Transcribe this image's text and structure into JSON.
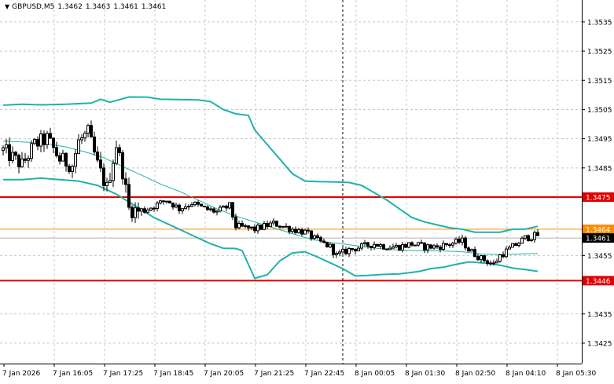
{
  "header": {
    "symbol": "GBPUSD,M5",
    "open": "1.3462",
    "high": "1.3463",
    "low": "1.3461",
    "close": "1.3461"
  },
  "colors": {
    "background": "#ffffff",
    "grid": "#c8c8c8",
    "candle": "#000000",
    "bollinger": "#20b2aa",
    "level_line": "#e00000",
    "ask_line": "#ff8c00",
    "bid_line": "#b0b0b0",
    "cursor_line": "#000000"
  },
  "chart_data": {
    "type": "candlestick",
    "symbol": "GBPUSD",
    "timeframe": "M5",
    "title": "GBPUSD,M5",
    "ylim": [
      1.3418,
      1.35425
    ],
    "grid": true,
    "y_ticks": [
      "1.3535",
      "1.3525",
      "1.3515",
      "1.3505",
      "1.3495",
      "1.3485",
      "1.3475",
      "1.3464",
      "1.3461",
      "1.3455",
      "1.3446",
      "1.3435",
      "1.3425"
    ],
    "x_ticks": [
      "7 Jan 2026",
      "7 Jan 16:05",
      "7 Jan 17:25",
      "7 Jan 18:45",
      "7 Jan 20:05",
      "7 Jan 21:25",
      "7 Jan 22:45",
      "8 Jan 00:05",
      "8 Jan 01:30",
      "8 Jan 02:50",
      "8 Jan 04:10",
      "8 Jan 05:30"
    ],
    "horizontal_levels": [
      {
        "value": 1.3475,
        "label": "1.3475",
        "kind": "level"
      },
      {
        "value": 1.34464,
        "label": "1.3446",
        "kind": "level"
      },
      {
        "value": 1.3464,
        "label": "1.3464",
        "kind": "ask"
      },
      {
        "value": 1.3461,
        "label": "1.3461",
        "kind": "bid"
      }
    ],
    "cursor_line_bar": 108,
    "price_path": [
      [
        0,
        1.3491
      ],
      [
        6,
        1.3486
      ],
      [
        10,
        1.3493
      ],
      [
        14,
        1.3495
      ],
      [
        18,
        1.3488
      ],
      [
        22,
        1.3486
      ],
      [
        24,
        1.3494
      ],
      [
        27,
        1.3497
      ],
      [
        30,
        1.3486
      ],
      [
        33,
        1.3478
      ],
      [
        36,
        1.3493
      ],
      [
        38,
        1.3484
      ],
      [
        40,
        1.3471
      ],
      [
        44,
        1.347
      ],
      [
        48,
        1.3472
      ],
      [
        52,
        1.3474
      ],
      [
        56,
        1.3471
      ],
      [
        60,
        1.3473
      ],
      [
        64,
        1.3471
      ],
      [
        68,
        1.347
      ],
      [
        72,
        1.3472
      ],
      [
        74,
        1.3465
      ],
      [
        80,
        1.3464
      ],
      [
        86,
        1.3466
      ],
      [
        92,
        1.3464
      ],
      [
        96,
        1.3463
      ],
      [
        100,
        1.346
      ],
      [
        104,
        1.3458
      ],
      [
        106,
        1.3455
      ],
      [
        110,
        1.3457
      ],
      [
        114,
        1.3458
      ],
      [
        118,
        1.3459
      ],
      [
        122,
        1.3458
      ],
      [
        126,
        1.3458
      ],
      [
        130,
        1.3459
      ],
      [
        134,
        1.3458
      ],
      [
        138,
        1.3458
      ],
      [
        142,
        1.3459
      ],
      [
        146,
        1.346
      ],
      [
        148,
        1.3457
      ],
      [
        152,
        1.3454
      ],
      [
        156,
        1.3452
      ],
      [
        158,
        1.3455
      ],
      [
        162,
        1.3458
      ],
      [
        166,
        1.3461
      ],
      [
        170,
        1.3462
      ]
    ],
    "series": [
      {
        "values": [
          [
            0,
            1.35065
          ],
          [
            6,
            1.35068
          ],
          [
            12,
            1.35066
          ],
          [
            20,
            1.35068
          ],
          [
            28,
            1.35072
          ],
          [
            31,
            1.35085
          ],
          [
            34,
            1.35075
          ],
          [
            40,
            1.35093
          ],
          [
            46,
            1.35092
          ],
          [
            50,
            1.35085
          ],
          [
            56,
            1.35084
          ],
          [
            62,
            1.35083
          ],
          [
            66,
            1.35077
          ],
          [
            70,
            1.3505
          ],
          [
            74,
            1.35035
          ],
          [
            78,
            1.3503
          ],
          [
            80,
            1.3498
          ],
          [
            84,
            1.3493
          ],
          [
            88,
            1.3488
          ],
          [
            92,
            1.3483
          ],
          [
            96,
            1.34805
          ],
          [
            100,
            1.34803
          ],
          [
            106,
            1.34802
          ],
          [
            110,
            1.348
          ],
          [
            114,
            1.3479
          ],
          [
            118,
            1.34765
          ],
          [
            122,
            1.3474
          ],
          [
            126,
            1.3471
          ],
          [
            130,
            1.3468
          ],
          [
            134,
            1.34665
          ],
          [
            138,
            1.34655
          ],
          [
            142,
            1.34645
          ],
          [
            146,
            1.3464
          ],
          [
            150,
            1.3463
          ],
          [
            154,
            1.3463
          ],
          [
            158,
            1.3463
          ],
          [
            162,
            1.3464
          ],
          [
            166,
            1.3464
          ],
          [
            170,
            1.3465
          ]
        ]
      },
      {
        "values": [
          [
            0,
            1.34942
          ],
          [
            8,
            1.34938
          ],
          [
            14,
            1.34932
          ],
          [
            20,
            1.34922
          ],
          [
            26,
            1.34905
          ],
          [
            32,
            1.34885
          ],
          [
            38,
            1.34855
          ],
          [
            44,
            1.34825
          ],
          [
            50,
            1.34795
          ],
          [
            56,
            1.3477
          ],
          [
            62,
            1.3474
          ],
          [
            68,
            1.3471
          ],
          [
            74,
            1.34685
          ],
          [
            80,
            1.34665
          ],
          [
            86,
            1.34645
          ],
          [
            92,
            1.34625
          ],
          [
            98,
            1.34605
          ],
          [
            104,
            1.34595
          ],
          [
            110,
            1.34587
          ],
          [
            116,
            1.34578
          ],
          [
            122,
            1.34571
          ],
          [
            128,
            1.34568
          ],
          [
            134,
            1.34566
          ],
          [
            140,
            1.34566
          ],
          [
            146,
            1.34563
          ],
          [
            152,
            1.34555
          ],
          [
            158,
            1.34553
          ],
          [
            164,
            1.34555
          ],
          [
            170,
            1.34557
          ]
        ]
      },
      {
        "values": [
          [
            0,
            1.3481
          ],
          [
            6,
            1.3481
          ],
          [
            12,
            1.34815
          ],
          [
            18,
            1.3481
          ],
          [
            24,
            1.34805
          ],
          [
            30,
            1.3479
          ],
          [
            36,
            1.3476
          ],
          [
            42,
            1.3472
          ],
          [
            48,
            1.3468
          ],
          [
            54,
            1.3465
          ],
          [
            60,
            1.3462
          ],
          [
            66,
            1.3459
          ],
          [
            70,
            1.34575
          ],
          [
            74,
            1.34574
          ],
          [
            76,
            1.34567
          ],
          [
            80,
            1.34472
          ],
          [
            84,
            1.34484
          ],
          [
            88,
            1.34532
          ],
          [
            92,
            1.34559
          ],
          [
            96,
            1.34563
          ],
          [
            100,
            1.34545
          ],
          [
            104,
            1.34525
          ],
          [
            108,
            1.34505
          ],
          [
            112,
            1.3448
          ],
          [
            116,
            1.34482
          ],
          [
            120,
            1.34485
          ],
          [
            126,
            1.34487
          ],
          [
            132,
            1.34495
          ],
          [
            136,
            1.34505
          ],
          [
            140,
            1.3451
          ],
          [
            144,
            1.3452
          ],
          [
            148,
            1.34528
          ],
          [
            150,
            1.34527
          ],
          [
            154,
            1.34523
          ],
          [
            158,
            1.34517
          ],
          [
            162,
            1.34507
          ],
          [
            166,
            1.34502
          ],
          [
            170,
            1.34496
          ]
        ]
      }
    ]
  }
}
